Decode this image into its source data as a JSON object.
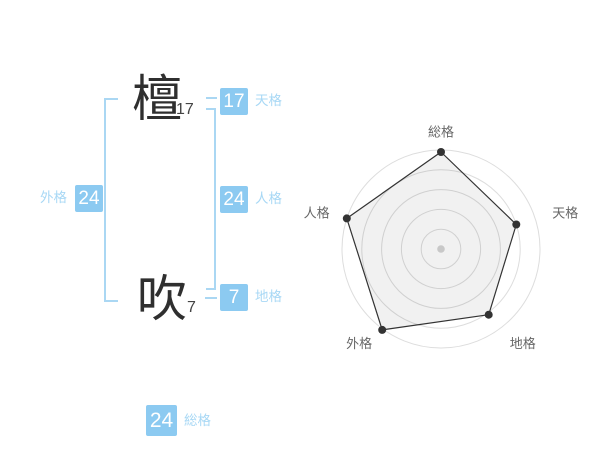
{
  "colors": {
    "badge_blue": "#8ccaf1",
    "label_blue": "#a8d8f5",
    "line_blue": "#aad7f3",
    "ink": "#2f2f2f",
    "stroke_num": "#444444",
    "chart_grid": "#dddddd",
    "chart_center_dot": "#c8c8c8",
    "chart_stroke": "#333333",
    "chart_fill": "rgba(0,0,0,0.055)",
    "chart_label": "#666666"
  },
  "name_display": {
    "surname": {
      "char": "檀",
      "strokes": "17"
    },
    "given": {
      "char": "吹",
      "strokes": "7"
    }
  },
  "scores": {
    "tenkaku": {
      "value": "17",
      "label": "天格"
    },
    "jinkaku": {
      "value": "24",
      "label": "人格"
    },
    "chikaku": {
      "value": "7",
      "label": "地格"
    },
    "gaikaku": {
      "value": "24",
      "label": "外格"
    },
    "soukaku": {
      "value": "24",
      "label": "総格"
    }
  },
  "chart_data": {
    "type": "radar",
    "title": "",
    "categories": [
      "総格",
      "天格",
      "地格",
      "外格",
      "人格"
    ],
    "values": [
      98,
      80,
      82,
      101,
      100
    ],
    "max": 100,
    "rings": 5,
    "start_angle_deg": -90,
    "direction": "clockwise",
    "grid_shape": "circular",
    "legend": "none",
    "has_center_dot": true
  }
}
